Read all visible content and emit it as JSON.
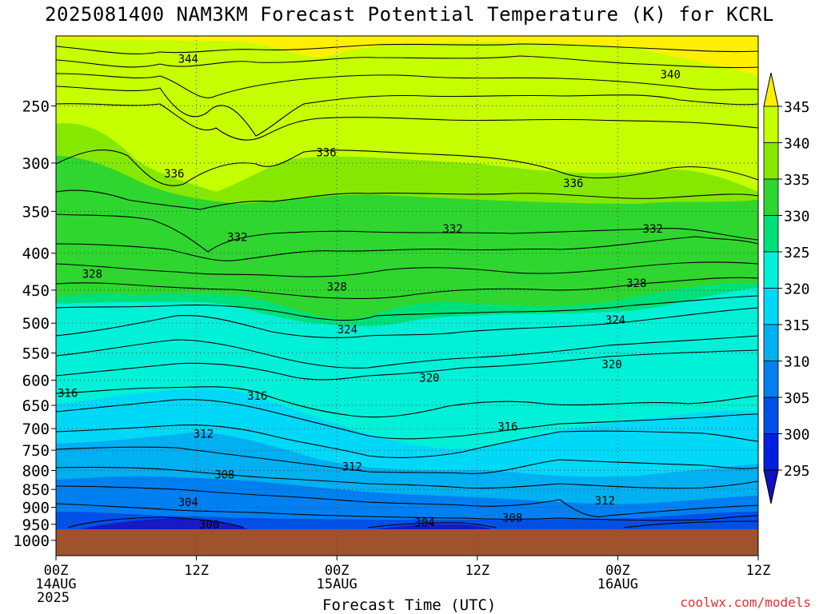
{
  "title": "2025081400 NAM3KM Forecast Potential Temperature (K) for KCRL",
  "footer": "coolwx.com/models",
  "chart_data": {
    "type": "heatmap",
    "title": "2025081400 NAM3KM Forecast Potential Temperature (K) for KCRL",
    "xlabel": "Forecast Time (UTC)",
    "ylabel": "",
    "units": "K",
    "y_ticks": [
      250,
      300,
      350,
      400,
      450,
      500,
      550,
      600,
      650,
      700,
      750,
      800,
      850,
      900,
      950,
      1000
    ],
    "y_range_hPa": [
      200,
      1050
    ],
    "x_ticks": [
      {
        "hour": 0,
        "label": "00Z",
        "sub": "14AUG"
      },
      {
        "hour": 12,
        "label": "12Z",
        "sub": ""
      },
      {
        "hour": 24,
        "label": "00Z",
        "sub": "15AUG"
      },
      {
        "hour": 36,
        "label": "12Z",
        "sub": ""
      },
      {
        "hour": 48,
        "label": "00Z",
        "sub": "16AUG"
      },
      {
        "hour": 60,
        "label": "12Z",
        "sub": ""
      }
    ],
    "year_label": "2025",
    "colorbar": {
      "levels": [
        345,
        340,
        335,
        330,
        325,
        320,
        315,
        310,
        305,
        300,
        295
      ],
      "colors": [
        "#fff000",
        "#c6ff00",
        "#86e800",
        "#2fd62f",
        "#00e07a",
        "#00f0d8",
        "#00d8f8",
        "#00b0f0",
        "#0080f0",
        "#0050e8",
        "#0020e0",
        "#1010c0"
      ]
    },
    "surface_fill": "#a0522d",
    "contour_labels": [
      {
        "v": "344",
        "t": 11.3,
        "p": 215
      },
      {
        "v": "340",
        "t": 52.5,
        "p": 226
      },
      {
        "v": "336",
        "t": 10.1,
        "p": 310
      },
      {
        "v": "336",
        "t": 23.1,
        "p": 290
      },
      {
        "v": "336",
        "t": 44.2,
        "p": 320
      },
      {
        "v": "332",
        "t": 15.5,
        "p": 380
      },
      {
        "v": "332",
        "t": 33.9,
        "p": 370
      },
      {
        "v": "332",
        "t": 51.0,
        "p": 370
      },
      {
        "v": "328",
        "t": 3.1,
        "p": 427
      },
      {
        "v": "328",
        "t": 24.0,
        "p": 445
      },
      {
        "v": "328",
        "t": 49.6,
        "p": 440
      },
      {
        "v": "324",
        "t": 24.9,
        "p": 510
      },
      {
        "v": "324",
        "t": 47.8,
        "p": 495
      },
      {
        "v": "320",
        "t": 31.9,
        "p": 595
      },
      {
        "v": "320",
        "t": 47.5,
        "p": 570
      },
      {
        "v": "316",
        "t": 1.0,
        "p": 625
      },
      {
        "v": "316",
        "t": 17.2,
        "p": 630
      },
      {
        "v": "316",
        "t": 38.6,
        "p": 695
      },
      {
        "v": "312",
        "t": 12.6,
        "p": 712
      },
      {
        "v": "312",
        "t": 25.3,
        "p": 790
      },
      {
        "v": "312",
        "t": 46.9,
        "p": 880
      },
      {
        "v": "308",
        "t": 14.4,
        "p": 810
      },
      {
        "v": "308",
        "t": 39.0,
        "p": 930
      },
      {
        "v": "304",
        "t": 11.3,
        "p": 885
      },
      {
        "v": "304",
        "t": 31.5,
        "p": 945
      },
      {
        "v": "300",
        "t": 13.1,
        "p": 950
      }
    ]
  }
}
